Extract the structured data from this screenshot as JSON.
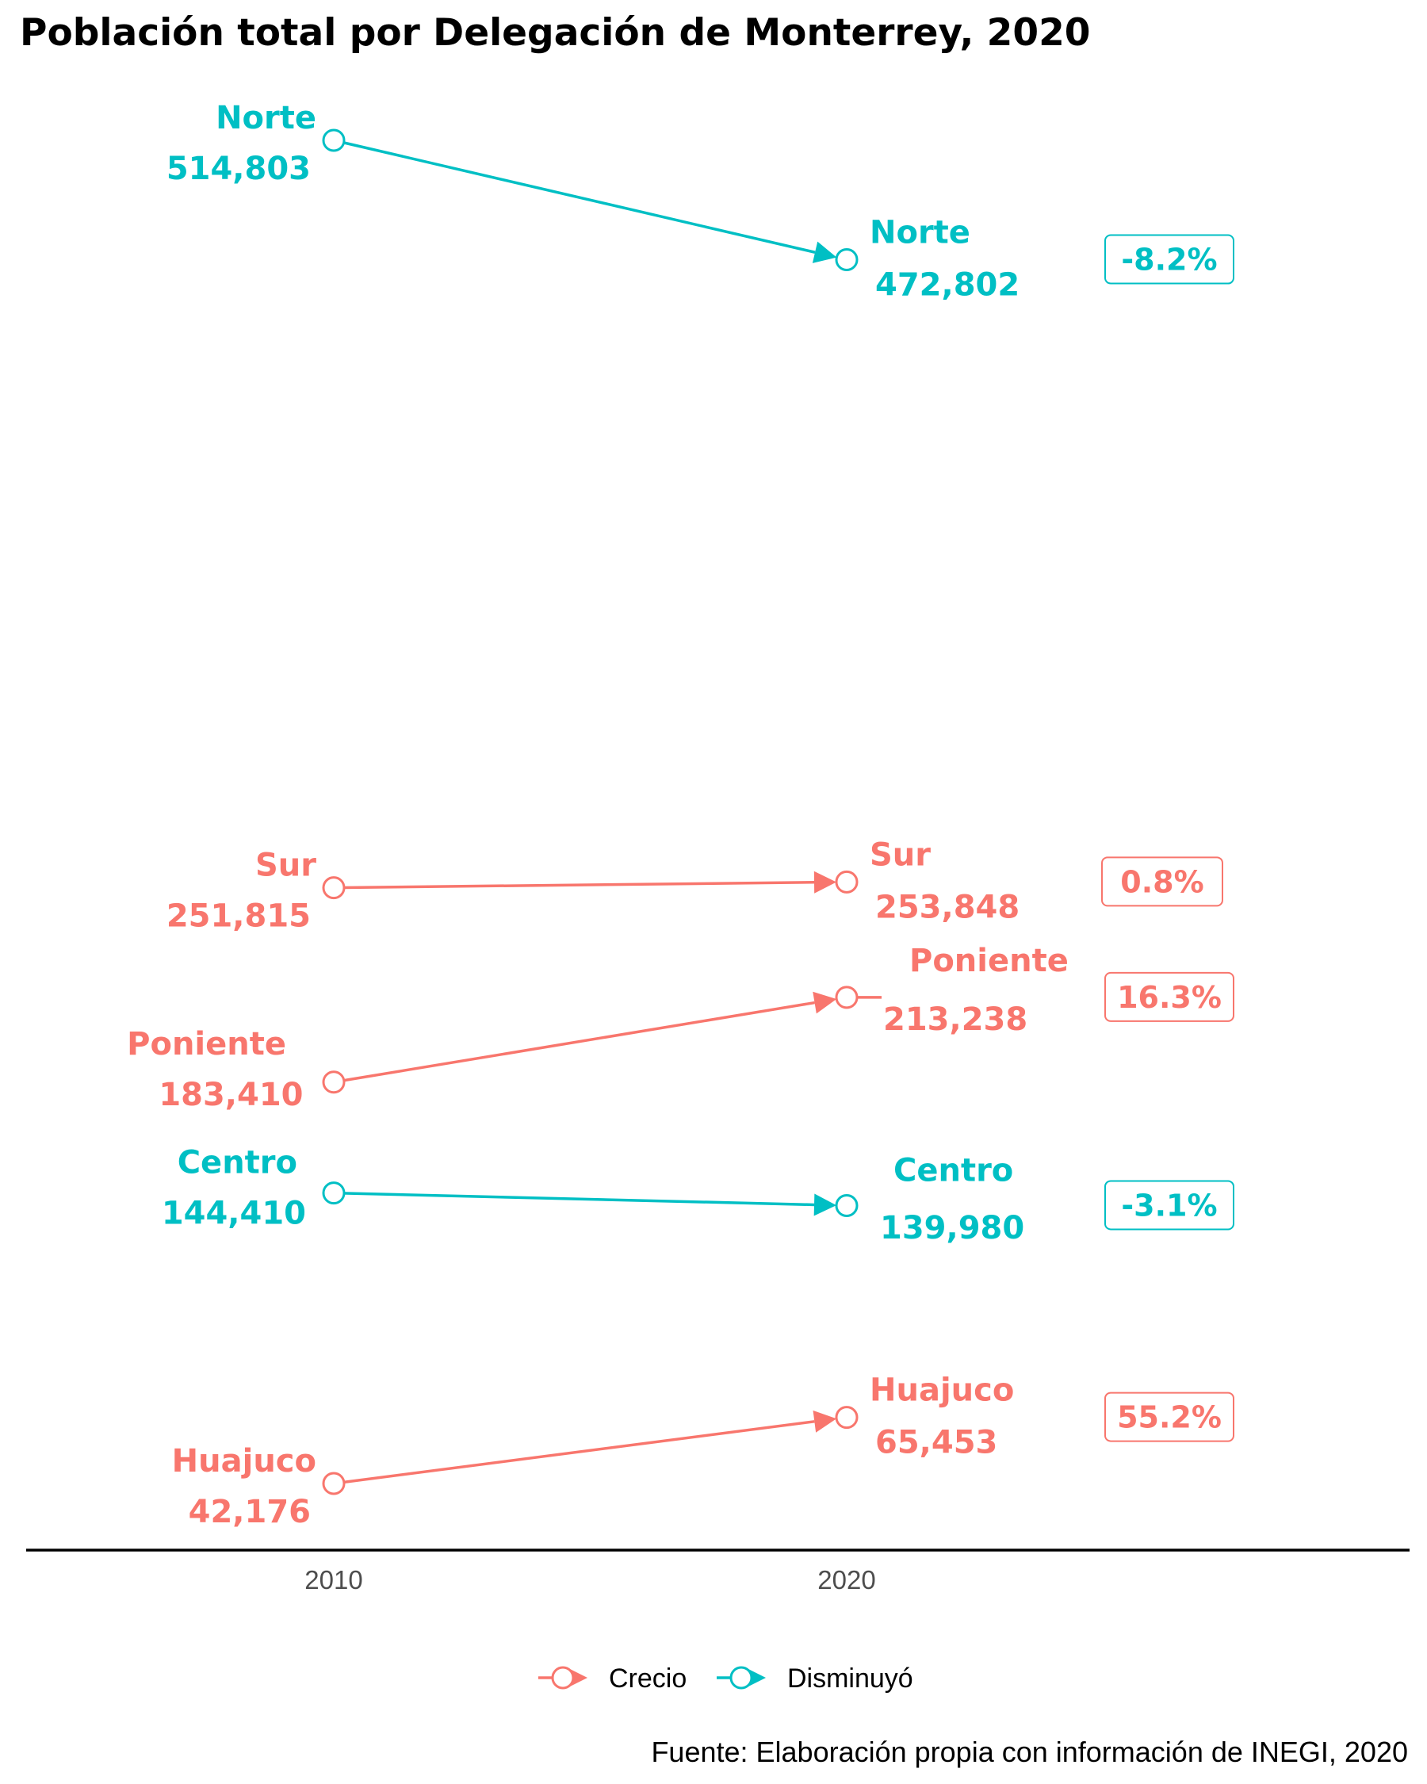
{
  "chart_data": {
    "type": "dumbbell-arrow",
    "title": "Población total por Delegación de Monterrey, 2020",
    "x_categories": [
      "2010",
      "2020"
    ],
    "ylim": [
      42176,
      514803
    ],
    "series": [
      {
        "name": "Norte",
        "v2010": 514803,
        "v2020": 472802,
        "label2010": "514,803",
        "label2020": "472,802",
        "change": "-8.2%",
        "status": "Disminuyó"
      },
      {
        "name": "Sur",
        "v2010": 251815,
        "v2020": 253848,
        "label2010": "251,815",
        "label2020": "253,848",
        "change": "0.8%",
        "status": "Crecio"
      },
      {
        "name": "Poniente",
        "v2010": 183410,
        "v2020": 213238,
        "label2010": "183,410",
        "label2020": "213,238",
        "change": "16.3%",
        "status": "Crecio"
      },
      {
        "name": "Centro",
        "v2010": 144410,
        "v2020": 139980,
        "label2010": "144,410",
        "label2020": "139,980",
        "change": "-3.1%",
        "status": "Disminuyó"
      },
      {
        "name": "Huajuco",
        "v2010": 42176,
        "v2020": 65453,
        "label2010": "42,176",
        "label2020": "65,453",
        "change": "55.2%",
        "status": "Crecio"
      }
    ],
    "legend": {
      "position": "bottom",
      "items": [
        {
          "label": "Crecio",
          "color": "#F8766D"
        },
        {
          "label": "Disminuyó",
          "color": "#00BFC4"
        }
      ]
    },
    "caption": "Fuente: Elaboración propia con información de INEGI, 2020",
    "grid": false
  }
}
